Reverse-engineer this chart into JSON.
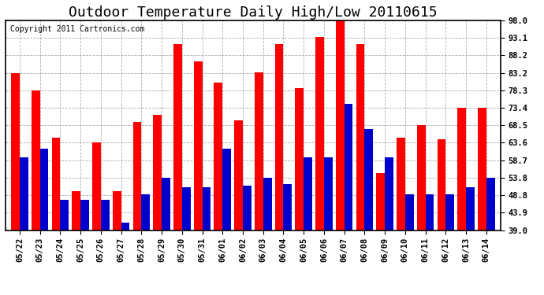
{
  "title": "Outdoor Temperature Daily High/Low 20110615",
  "copyright": "Copyright 2011 Cartronics.com",
  "categories": [
    "05/22",
    "05/23",
    "05/24",
    "05/25",
    "05/26",
    "05/27",
    "05/28",
    "05/29",
    "05/30",
    "05/31",
    "06/01",
    "06/02",
    "06/03",
    "06/04",
    "06/05",
    "06/06",
    "06/07",
    "06/08",
    "06/09",
    "06/10",
    "06/11",
    "06/12",
    "06/13",
    "06/14"
  ],
  "highs": [
    83.2,
    78.3,
    65.0,
    50.0,
    63.6,
    50.0,
    69.5,
    71.5,
    91.5,
    86.5,
    80.5,
    70.0,
    83.5,
    91.5,
    79.0,
    93.5,
    98.0,
    91.5,
    55.0,
    65.0,
    68.5,
    64.5,
    73.4,
    73.4
  ],
  "lows": [
    59.5,
    62.0,
    47.5,
    47.5,
    47.5,
    41.0,
    49.0,
    53.8,
    51.0,
    51.0,
    62.0,
    51.5,
    53.8,
    52.0,
    59.5,
    59.5,
    74.5,
    67.5,
    59.5,
    49.0,
    49.0,
    49.0,
    51.0,
    53.8
  ],
  "high_color": "#ff0000",
  "low_color": "#0000cc",
  "bg_color": "#ffffff",
  "plot_bg_color": "#ffffff",
  "grid_color": "#999999",
  "yticks": [
    39.0,
    43.9,
    48.8,
    53.8,
    58.7,
    63.6,
    68.5,
    73.4,
    78.3,
    83.2,
    88.2,
    93.1,
    98.0
  ],
  "ylim": [
    39.0,
    98.0
  ],
  "title_fontsize": 13,
  "copyright_fontsize": 7,
  "tick_fontsize": 7.5,
  "bar_width": 0.42
}
